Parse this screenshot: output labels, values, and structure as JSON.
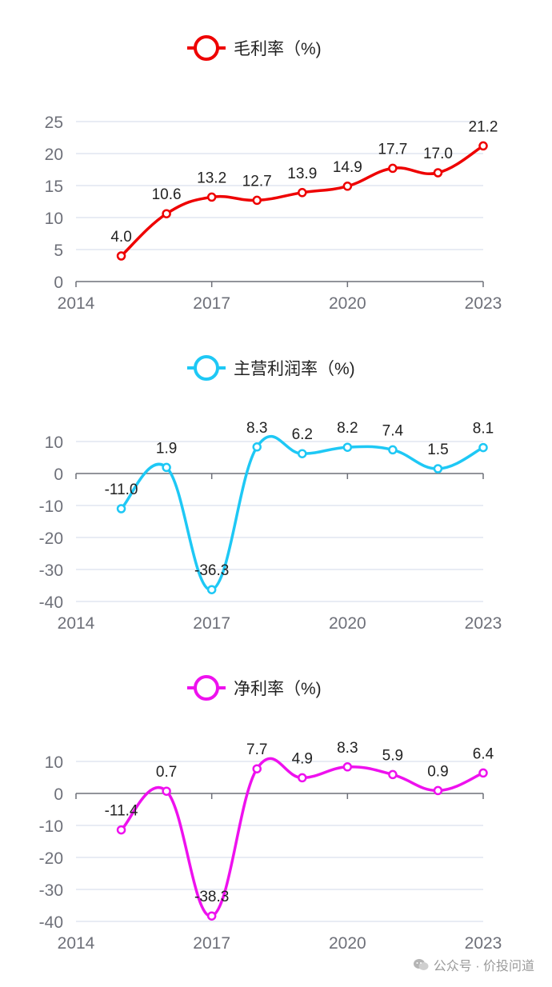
{
  "chart_data": [
    {
      "type": "line",
      "title": "毛利率（%)",
      "series_name": "毛利率（%)",
      "color": "#ee0000",
      "x": [
        2015,
        2016,
        2017,
        2018,
        2019,
        2020,
        2021,
        2022,
        2023
      ],
      "values": [
        4.0,
        10.6,
        13.2,
        12.7,
        13.9,
        14.9,
        17.7,
        17.0,
        21.2
      ],
      "labels": [
        "4.0",
        "10.6",
        "13.2",
        "12.7",
        "13.9",
        "14.9",
        "17.7",
        "17.0",
        "21.2"
      ],
      "xlim": [
        2014,
        2023
      ],
      "x_ticks": [
        "2014",
        "2017",
        "2020",
        "2023"
      ],
      "ylim": [
        0,
        25
      ],
      "y_ticks": [
        "0",
        "5",
        "10",
        "15",
        "20",
        "25"
      ],
      "grid": true,
      "legend": "top-center"
    },
    {
      "type": "line",
      "title": "主营利润率（%)",
      "series_name": "主营利润率（%)",
      "color": "#1ec8f5",
      "x": [
        2015,
        2016,
        2017,
        2018,
        2019,
        2020,
        2021,
        2022,
        2023
      ],
      "values": [
        -11.0,
        1.9,
        -36.3,
        8.3,
        6.2,
        8.2,
        7.4,
        1.5,
        8.1
      ],
      "labels": [
        "-11.0",
        "1.9",
        "-36.3",
        "8.3",
        "6.2",
        "8.2",
        "7.4",
        "1.5",
        "8.1"
      ],
      "xlim": [
        2014,
        2023
      ],
      "x_ticks": [
        "2014",
        "2017",
        "2020",
        "2023"
      ],
      "ylim": [
        -40,
        10
      ],
      "y_ticks": [
        "-40",
        "-30",
        "-20",
        "-10",
        "0",
        "10"
      ],
      "grid": true,
      "legend": "top-center"
    },
    {
      "type": "line",
      "title": "净利率（%)",
      "series_name": "净利率（%)",
      "color": "#ee11ee",
      "x": [
        2015,
        2016,
        2017,
        2018,
        2019,
        2020,
        2021,
        2022,
        2023
      ],
      "values": [
        -11.4,
        0.7,
        -38.3,
        7.7,
        4.9,
        8.3,
        5.9,
        0.9,
        6.4
      ],
      "labels": [
        "-11.4",
        "0.7",
        "-38.3",
        "7.7",
        "4.9",
        "8.3",
        "5.9",
        "0.9",
        "6.4"
      ],
      "xlim": [
        2014,
        2023
      ],
      "x_ticks": [
        "2014",
        "2017",
        "2020",
        "2023"
      ],
      "ylim": [
        -40,
        10
      ],
      "y_ticks": [
        "-40",
        "-30",
        "-20",
        "-10",
        "0",
        "10"
      ],
      "grid": true,
      "legend": "top-center"
    }
  ],
  "watermark": {
    "text": "公众号 · 价投问道",
    "icon": "wechat-icon"
  }
}
